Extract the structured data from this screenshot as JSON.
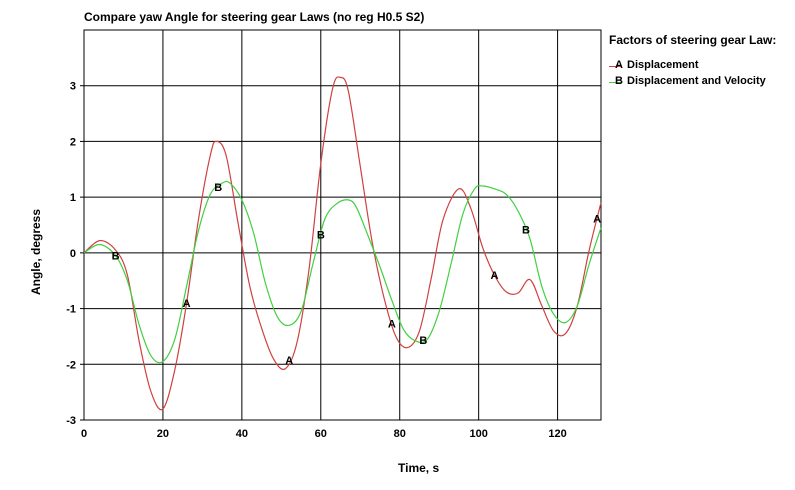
{
  "chart_data": {
    "type": "line",
    "title": "Compare yaw Angle for steering gear Laws (no reg H0.5 S2)",
    "xlabel": "Time, s",
    "ylabel": "Angle, degress",
    "xlim": [
      0,
      131
    ],
    "ylim": [
      -3,
      4
    ],
    "xticks": [
      0,
      20,
      40,
      60,
      80,
      100,
      120
    ],
    "yticks": [
      -3,
      -2,
      -1,
      0,
      1,
      2,
      3
    ],
    "grid": true,
    "legend_title": "Factors of steering gear Law:",
    "legend_position": "right",
    "series": [
      {
        "name": "Displacement",
        "marker": "A",
        "color": "#d04040",
        "x": [
          0,
          4,
          8,
          11,
          14,
          17,
          20,
          23,
          26,
          29,
          32,
          33.5,
          36,
          39,
          42,
          45,
          48,
          51,
          54,
          57,
          60,
          63,
          65,
          67,
          70,
          73,
          76,
          79,
          82,
          85,
          88,
          91,
          95,
          98,
          101,
          104,
          107,
          110,
          113,
          116,
          119,
          122,
          125,
          128,
          131
        ],
        "y": [
          0,
          0.22,
          0.05,
          -0.4,
          -1.6,
          -2.5,
          -2.8,
          -2.1,
          -0.9,
          0.6,
          1.75,
          2.0,
          1.75,
          0.55,
          -0.6,
          -1.35,
          -1.9,
          -2.08,
          -1.6,
          -0.3,
          1.6,
          2.95,
          3.15,
          2.9,
          1.55,
          0.2,
          -0.8,
          -1.5,
          -1.7,
          -1.4,
          -0.45,
          0.6,
          1.15,
          0.8,
          0.1,
          -0.4,
          -0.7,
          -0.72,
          -0.48,
          -0.95,
          -1.4,
          -1.45,
          -0.95,
          0.05,
          0.9
        ],
        "labels_x": [
          26,
          52,
          78,
          104,
          130
        ]
      },
      {
        "name": "Displacement and Velocity",
        "marker": "B",
        "color": "#40d040",
        "x": [
          0,
          4,
          8,
          11,
          14,
          17,
          20,
          23,
          26,
          29,
          32,
          35,
          37,
          40,
          43,
          46,
          49,
          52,
          55,
          58,
          61,
          64,
          67,
          69,
          72,
          75,
          78,
          81,
          84,
          87,
          90,
          93,
          96,
          99,
          101,
          104,
          107,
          110,
          113,
          116,
          119,
          122,
          125,
          128,
          131
        ],
        "y": [
          0,
          0.15,
          -0.05,
          -0.5,
          -1.3,
          -1.85,
          -1.95,
          -1.55,
          -0.6,
          0.4,
          1.05,
          1.25,
          1.25,
          0.95,
          0.35,
          -0.55,
          -1.15,
          -1.3,
          -1.05,
          -0.2,
          0.6,
          0.88,
          0.95,
          0.82,
          0.3,
          -0.25,
          -0.85,
          -1.38,
          -1.58,
          -1.55,
          -1.05,
          -0.2,
          0.7,
          1.15,
          1.2,
          1.15,
          1.05,
          0.75,
          0.25,
          -0.6,
          -1.1,
          -1.25,
          -0.95,
          -0.2,
          0.45
        ],
        "labels_x": [
          8,
          34,
          60,
          86,
          112
        ]
      }
    ]
  }
}
